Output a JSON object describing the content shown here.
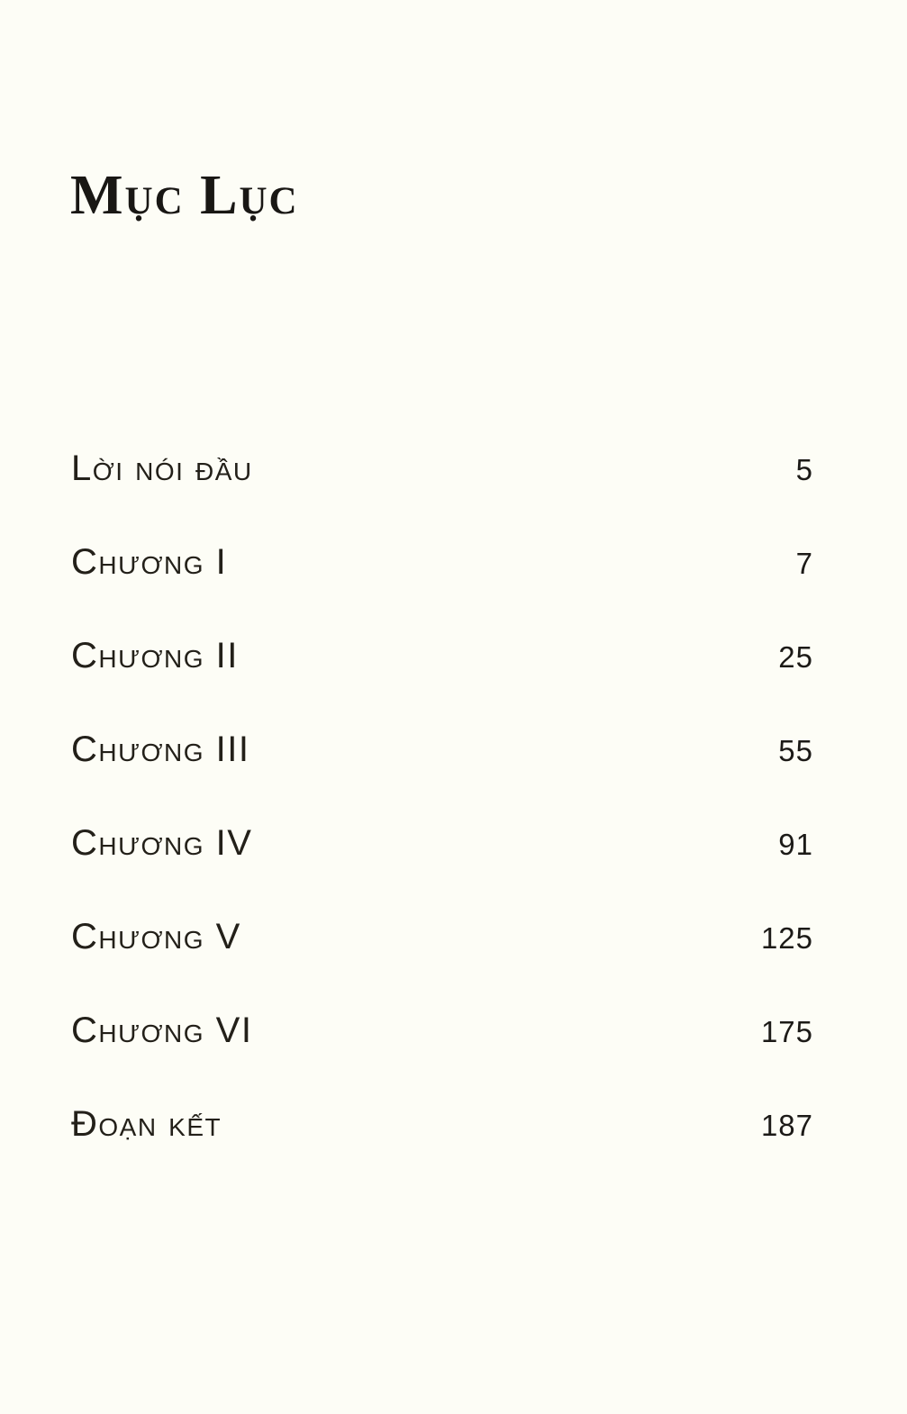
{
  "page": {
    "title": "Mục Lục",
    "entries": [
      {
        "label": "Lời nói đầu",
        "page": "5"
      },
      {
        "label": "Chương I",
        "page": "7"
      },
      {
        "label": "Chương II",
        "page": "25"
      },
      {
        "label": "Chương III",
        "page": "55"
      },
      {
        "label": "Chương IV",
        "page": "91"
      },
      {
        "label": "Chương V",
        "page": "125"
      },
      {
        "label": "Chương VI",
        "page": "175"
      },
      {
        "label": "Đoạn kết",
        "page": "187"
      }
    ]
  }
}
